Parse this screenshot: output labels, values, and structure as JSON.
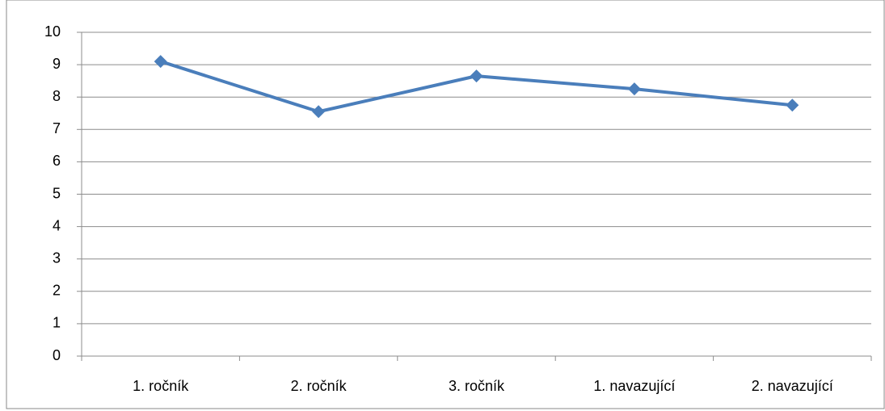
{
  "chart_data": {
    "type": "line",
    "categories": [
      "1. ročník",
      "2. ročník",
      "3. ročník",
      "1. navazující",
      "2. navazující"
    ],
    "values": [
      9.1,
      7.55,
      8.65,
      8.25,
      7.75
    ],
    "color": "#4a7ebb",
    "ylim": [
      0,
      10
    ],
    "yticks": [
      0,
      1,
      2,
      3,
      4,
      5,
      6,
      7,
      8,
      9,
      10
    ],
    "grid": true
  }
}
